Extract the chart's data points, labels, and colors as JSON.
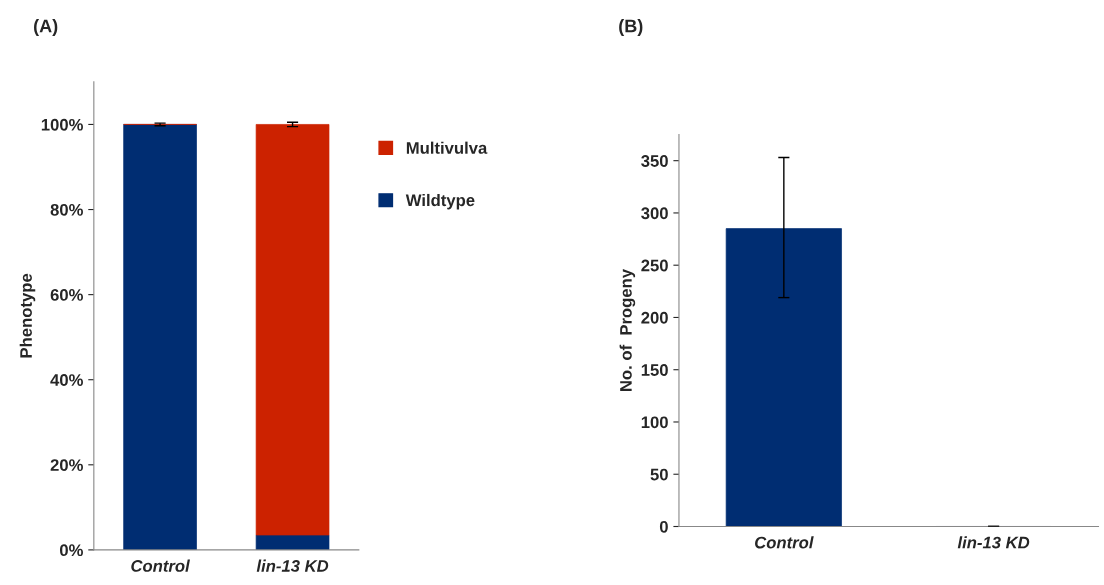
{
  "chart_data": [
    {
      "type": "bar",
      "title": "(A)",
      "ylabel": "Phenotype",
      "categories": [
        "Control",
        "lin-13 KD"
      ],
      "stacked": true,
      "ylim": [
        0,
        110
      ],
      "yticks": [
        {
          "value": 0,
          "label": "0%"
        },
        {
          "value": 20,
          "label": "20%"
        },
        {
          "value": 40,
          "label": "40%"
        },
        {
          "value": 60,
          "label": "60%"
        },
        {
          "value": 80,
          "label": "80%"
        },
        {
          "value": 100,
          "label": "100%"
        }
      ],
      "legend": "right",
      "grid": false,
      "series": [
        {
          "name": "Wildtype",
          "color": "#002d72",
          "values": [
            100,
            3.5
          ],
          "errors": [
            0.3,
            null
          ]
        },
        {
          "name": "Multivulva",
          "color": "#cc2200",
          "values": [
            0,
            96.5
          ],
          "errors": [
            null,
            0.5
          ]
        }
      ]
    },
    {
      "type": "bar",
      "title": "(B)",
      "ylabel": "No. of  Progeny",
      "categories": [
        "Control",
        "lin-13 KD"
      ],
      "ylim": [
        0,
        375
      ],
      "yticks": [
        0,
        50,
        100,
        150,
        200,
        250,
        300,
        350
      ],
      "grid": false,
      "series": [
        {
          "color": "#002d72",
          "values": [
            285,
            0
          ],
          "errors": [
            [
              219,
              353
            ],
            0
          ]
        }
      ]
    }
  ]
}
